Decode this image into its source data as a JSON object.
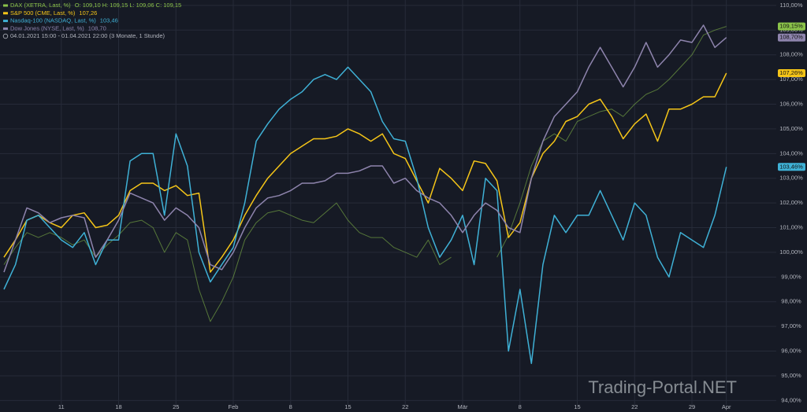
{
  "chart_data": {
    "type": "line",
    "subtitle": "04.01.2021 15:00 - 01.04.2021 22:00  (3 Monate, 1 Stunde)",
    "watermark": "Trading-Portal.NET",
    "categories": [
      null,
      null,
      null,
      null,
      null,
      "11",
      null,
      null,
      null,
      null,
      "18",
      null,
      null,
      null,
      null,
      "25",
      null,
      null,
      null,
      null,
      "Feb",
      null,
      null,
      null,
      null,
      "8",
      null,
      null,
      null,
      null,
      "15",
      null,
      null,
      null,
      null,
      "22",
      null,
      null,
      null,
      null,
      "Mär",
      null,
      null,
      null,
      null,
      "8",
      null,
      null,
      null,
      null,
      "15",
      null,
      null,
      null,
      null,
      "22",
      null,
      null,
      null,
      null,
      "29",
      null,
      null,
      "Apr"
    ],
    "series": [
      {
        "name": "DAX (XETRA, Last, %)",
        "detail": "O: 109,10  H: 109,15  L: 109,06  C: 109,15",
        "color": "#8bc34a",
        "values": [
          99.5,
          100.2,
          100.8,
          100.6,
          100.8,
          100.6,
          100.3,
          100.5,
          99.8,
          100.3,
          100.7,
          101.2,
          101.3,
          101.0,
          100.0,
          100.8,
          100.5,
          98.5,
          97.2,
          98.0,
          99.0,
          100.5,
          101.2,
          101.6,
          101.7,
          101.5,
          101.3,
          101.2,
          101.6,
          102.0,
          101.3,
          100.8,
          100.6,
          100.6,
          100.2,
          100.0,
          99.8,
          100.5,
          99.5,
          99.8,
          null,
          null,
          null,
          99.8,
          100.7,
          102.0,
          103.5,
          104.5,
          104.8,
          104.5,
          105.3,
          105.5,
          105.7,
          105.8,
          105.5,
          106.0,
          106.4,
          106.6,
          107.0,
          107.5,
          108.0,
          108.8,
          109.0,
          109.15
        ],
        "value_labels": [
          null,
          null,
          null,
          null,
          null,
          null,
          null,
          null,
          null,
          null,
          null,
          null,
          null,
          null,
          null,
          null,
          null,
          null,
          null,
          null,
          null,
          null,
          null,
          null,
          null,
          null,
          null,
          null,
          null,
          null,
          null,
          null,
          null,
          null,
          null,
          null,
          null,
          null,
          null,
          null,
          null,
          null,
          null,
          null,
          null,
          null,
          null,
          null,
          null,
          null,
          null,
          null,
          null,
          null,
          null,
          null,
          null,
          null,
          null,
          null,
          null,
          null,
          null,
          "109,15%"
        ]
      },
      {
        "name": "S&P 500 (CME, Last, %)",
        "detail": "107,26",
        "color": "#f5c518",
        "values": [
          99.8,
          100.5,
          101.3,
          101.5,
          101.2,
          101.0,
          101.5,
          101.6,
          101.0,
          101.1,
          101.5,
          102.5,
          102.8,
          102.8,
          102.5,
          102.7,
          102.3,
          102.4,
          99.2,
          99.8,
          100.5,
          101.5,
          102.3,
          103.0,
          103.5,
          104.0,
          104.3,
          104.6,
          104.6,
          104.7,
          105.0,
          104.8,
          104.5,
          104.8,
          104.0,
          103.8,
          102.9,
          102.0,
          103.4,
          103.0,
          102.5,
          103.7,
          103.6,
          102.9,
          100.6,
          101.2,
          103.0,
          104.0,
          104.5,
          105.3,
          105.5,
          106.0,
          106.2,
          105.5,
          104.6,
          105.2,
          105.6,
          104.5,
          105.8,
          105.8,
          106.0,
          106.3,
          106.3,
          107.26
        ],
        "value_labels": [
          null,
          null,
          null,
          null,
          null,
          null,
          null,
          null,
          null,
          null,
          null,
          null,
          null,
          null,
          null,
          null,
          null,
          null,
          null,
          null,
          null,
          null,
          null,
          null,
          null,
          null,
          null,
          null,
          null,
          null,
          null,
          null,
          null,
          null,
          null,
          null,
          null,
          null,
          null,
          null,
          null,
          null,
          null,
          null,
          null,
          null,
          null,
          null,
          null,
          null,
          null,
          null,
          null,
          null,
          null,
          null,
          null,
          null,
          null,
          null,
          null,
          null,
          null,
          "107,26%"
        ]
      },
      {
        "name": "Nasdaq-100 (NASDAQ, Last, %)",
        "detail": "103,46",
        "color": "#3fb1d6",
        "values": [
          98.5,
          99.5,
          101.3,
          101.5,
          101.0,
          100.5,
          100.2,
          100.8,
          99.5,
          100.5,
          100.5,
          103.7,
          104.0,
          104.0,
          101.5,
          104.8,
          103.5,
          100.0,
          98.8,
          99.5,
          100.2,
          102.0,
          104.5,
          105.2,
          105.8,
          106.2,
          106.5,
          107.0,
          107.2,
          107.0,
          107.5,
          107.0,
          106.5,
          105.3,
          104.6,
          104.5,
          103.0,
          101.0,
          99.8,
          100.5,
          101.5,
          99.5,
          103.0,
          102.5,
          96.0,
          98.5,
          95.5,
          99.5,
          101.5,
          100.8,
          101.5,
          101.5,
          102.5,
          101.5,
          100.5,
          102.0,
          101.5,
          99.8,
          99.0,
          100.8,
          100.5,
          100.2,
          101.5,
          103.46
        ],
        "value_labels": [
          null,
          null,
          null,
          null,
          null,
          null,
          null,
          null,
          null,
          null,
          null,
          null,
          null,
          null,
          null,
          null,
          null,
          null,
          null,
          null,
          null,
          null,
          null,
          null,
          null,
          null,
          null,
          null,
          null,
          null,
          null,
          null,
          null,
          null,
          null,
          null,
          null,
          null,
          null,
          null,
          null,
          null,
          null,
          null,
          null,
          null,
          null,
          null,
          null,
          null,
          null,
          null,
          null,
          null,
          null,
          null,
          null,
          null,
          null,
          null,
          null,
          null,
          null,
          "103,46%"
        ]
      },
      {
        "name": "Dow Jones (NYSE, Last, %)",
        "detail": "108,70",
        "color": "#8e84ad",
        "values": [
          99.2,
          100.5,
          101.8,
          101.6,
          101.2,
          101.4,
          101.5,
          101.4,
          99.8,
          100.5,
          101.3,
          102.4,
          102.2,
          102.0,
          101.3,
          101.8,
          101.5,
          101.0,
          99.5,
          99.3,
          100.0,
          101.0,
          101.8,
          102.2,
          102.3,
          102.5,
          102.8,
          102.8,
          102.9,
          103.2,
          103.2,
          103.3,
          103.5,
          103.5,
          102.8,
          103.0,
          102.5,
          102.2,
          102.0,
          101.5,
          100.8,
          101.5,
          102.0,
          101.7,
          101.0,
          100.8,
          103.0,
          104.5,
          105.5,
          106.0,
          106.5,
          107.5,
          108.3,
          107.5,
          106.7,
          107.5,
          108.5,
          107.5,
          108.0,
          108.6,
          108.5,
          109.2,
          108.3,
          108.7
        ],
        "value_labels": [
          null,
          null,
          null,
          null,
          null,
          null,
          null,
          null,
          null,
          null,
          null,
          null,
          null,
          null,
          null,
          null,
          null,
          null,
          null,
          null,
          null,
          null,
          null,
          null,
          null,
          null,
          null,
          null,
          null,
          null,
          null,
          null,
          null,
          null,
          null,
          null,
          null,
          null,
          null,
          null,
          null,
          null,
          null,
          null,
          null,
          null,
          null,
          null,
          null,
          null,
          null,
          null,
          null,
          null,
          null,
          null,
          null,
          null,
          null,
          null,
          null,
          null,
          null,
          "108,70%"
        ]
      }
    ],
    "ylim": [
      93.82,
      110.22
    ],
    "yticks": [
      {
        "value": 94,
        "label": "94,00%"
      },
      {
        "value": 95,
        "label": "95,00%"
      },
      {
        "value": 96,
        "label": "96,00%"
      },
      {
        "value": 97,
        "label": "97,00%"
      },
      {
        "value": 98,
        "label": "98,00%"
      },
      {
        "value": 99,
        "label": "99,00%"
      },
      {
        "value": 100,
        "label": "100,00%"
      },
      {
        "value": 101,
        "label": "101,00%"
      },
      {
        "value": 102,
        "label": "102,00%"
      },
      {
        "value": 103,
        "label": "103,00%"
      },
      {
        "value": 104,
        "label": "104,00%"
      },
      {
        "value": 105,
        "label": "105,00%"
      },
      {
        "value": 106,
        "label": "106,00%"
      },
      {
        "value": 107,
        "label": "107,00%"
      },
      {
        "value": 108,
        "label": "108,00%"
      },
      {
        "value": 109,
        "label": "109,00%"
      },
      {
        "value": 110,
        "label": "110,00%"
      }
    ],
    "grid": true
  }
}
